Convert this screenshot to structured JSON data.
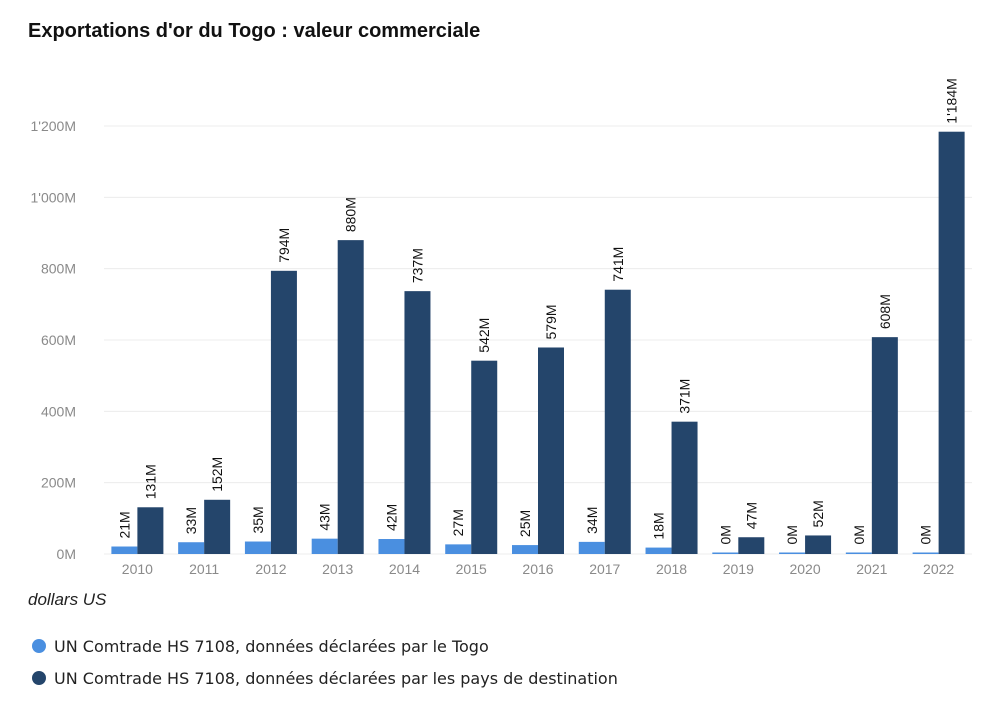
{
  "chart_data": {
    "type": "bar",
    "title": "Exportations d'or du Togo : valeur commerciale",
    "unit_note": "dollars US",
    "categories": [
      "2010",
      "2011",
      "2012",
      "2013",
      "2014",
      "2015",
      "2016",
      "2017",
      "2018",
      "2019",
      "2020",
      "2021",
      "2022"
    ],
    "series": [
      {
        "name": "UN Comtrade HS 7108, données déclarées par le Togo",
        "color": "#4A8FE0",
        "values": [
          21,
          33,
          35,
          43,
          42,
          27,
          25,
          34,
          18,
          0,
          0,
          0,
          0
        ],
        "labels": [
          "21M",
          "33M",
          "35M",
          "43M",
          "42M",
          "27M",
          "25M",
          "34M",
          "18M",
          "0M",
          "0M",
          "0M",
          "0M"
        ]
      },
      {
        "name": "UN Comtrade HS 7108, données déclarées par les pays de destination",
        "color": "#24456B",
        "values": [
          131,
          152,
          794,
          880,
          737,
          542,
          579,
          741,
          371,
          47,
          52,
          608,
          1184
        ],
        "labels": [
          "131M",
          "152M",
          "794M",
          "880M",
          "737M",
          "542M",
          "579M",
          "741M",
          "371M",
          "47M",
          "52M",
          "608M",
          "1'184M"
        ]
      }
    ],
    "ylim": [
      0,
      1200
    ],
    "yticks": [
      0,
      200,
      400,
      600,
      800,
      1000,
      1200
    ],
    "ytick_labels": [
      "0M",
      "200M",
      "400M",
      "600M",
      "800M",
      "1'000M",
      "1'200M"
    ],
    "grid": true,
    "legend_position": "bottom-left"
  }
}
